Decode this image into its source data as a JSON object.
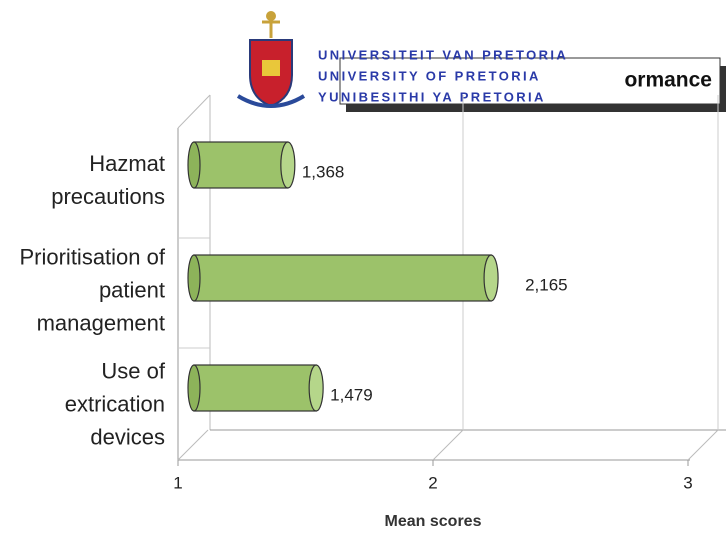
{
  "logo": {
    "lines": [
      "UNIVERSITEIT VAN PRETORIA",
      "UNIVERSITY OF PRETORIA",
      "YUNIBESITHI YA PRETORIA"
    ]
  },
  "chart_data": {
    "type": "bar",
    "orientation": "horizontal",
    "title": "ormance",
    "categories": [
      "Hazmat precautions",
      "Prioritisation of patient management",
      "Use of extrication devices"
    ],
    "values": [
      1.368,
      2.165,
      1.479
    ],
    "value_labels": [
      "1,368",
      "2,165",
      "1,479"
    ],
    "color": "#9cc26a",
    "xlim": [
      1,
      3
    ],
    "xticks": [
      1,
      2,
      3
    ],
    "grid": true,
    "x_label": "Mean scores"
  }
}
